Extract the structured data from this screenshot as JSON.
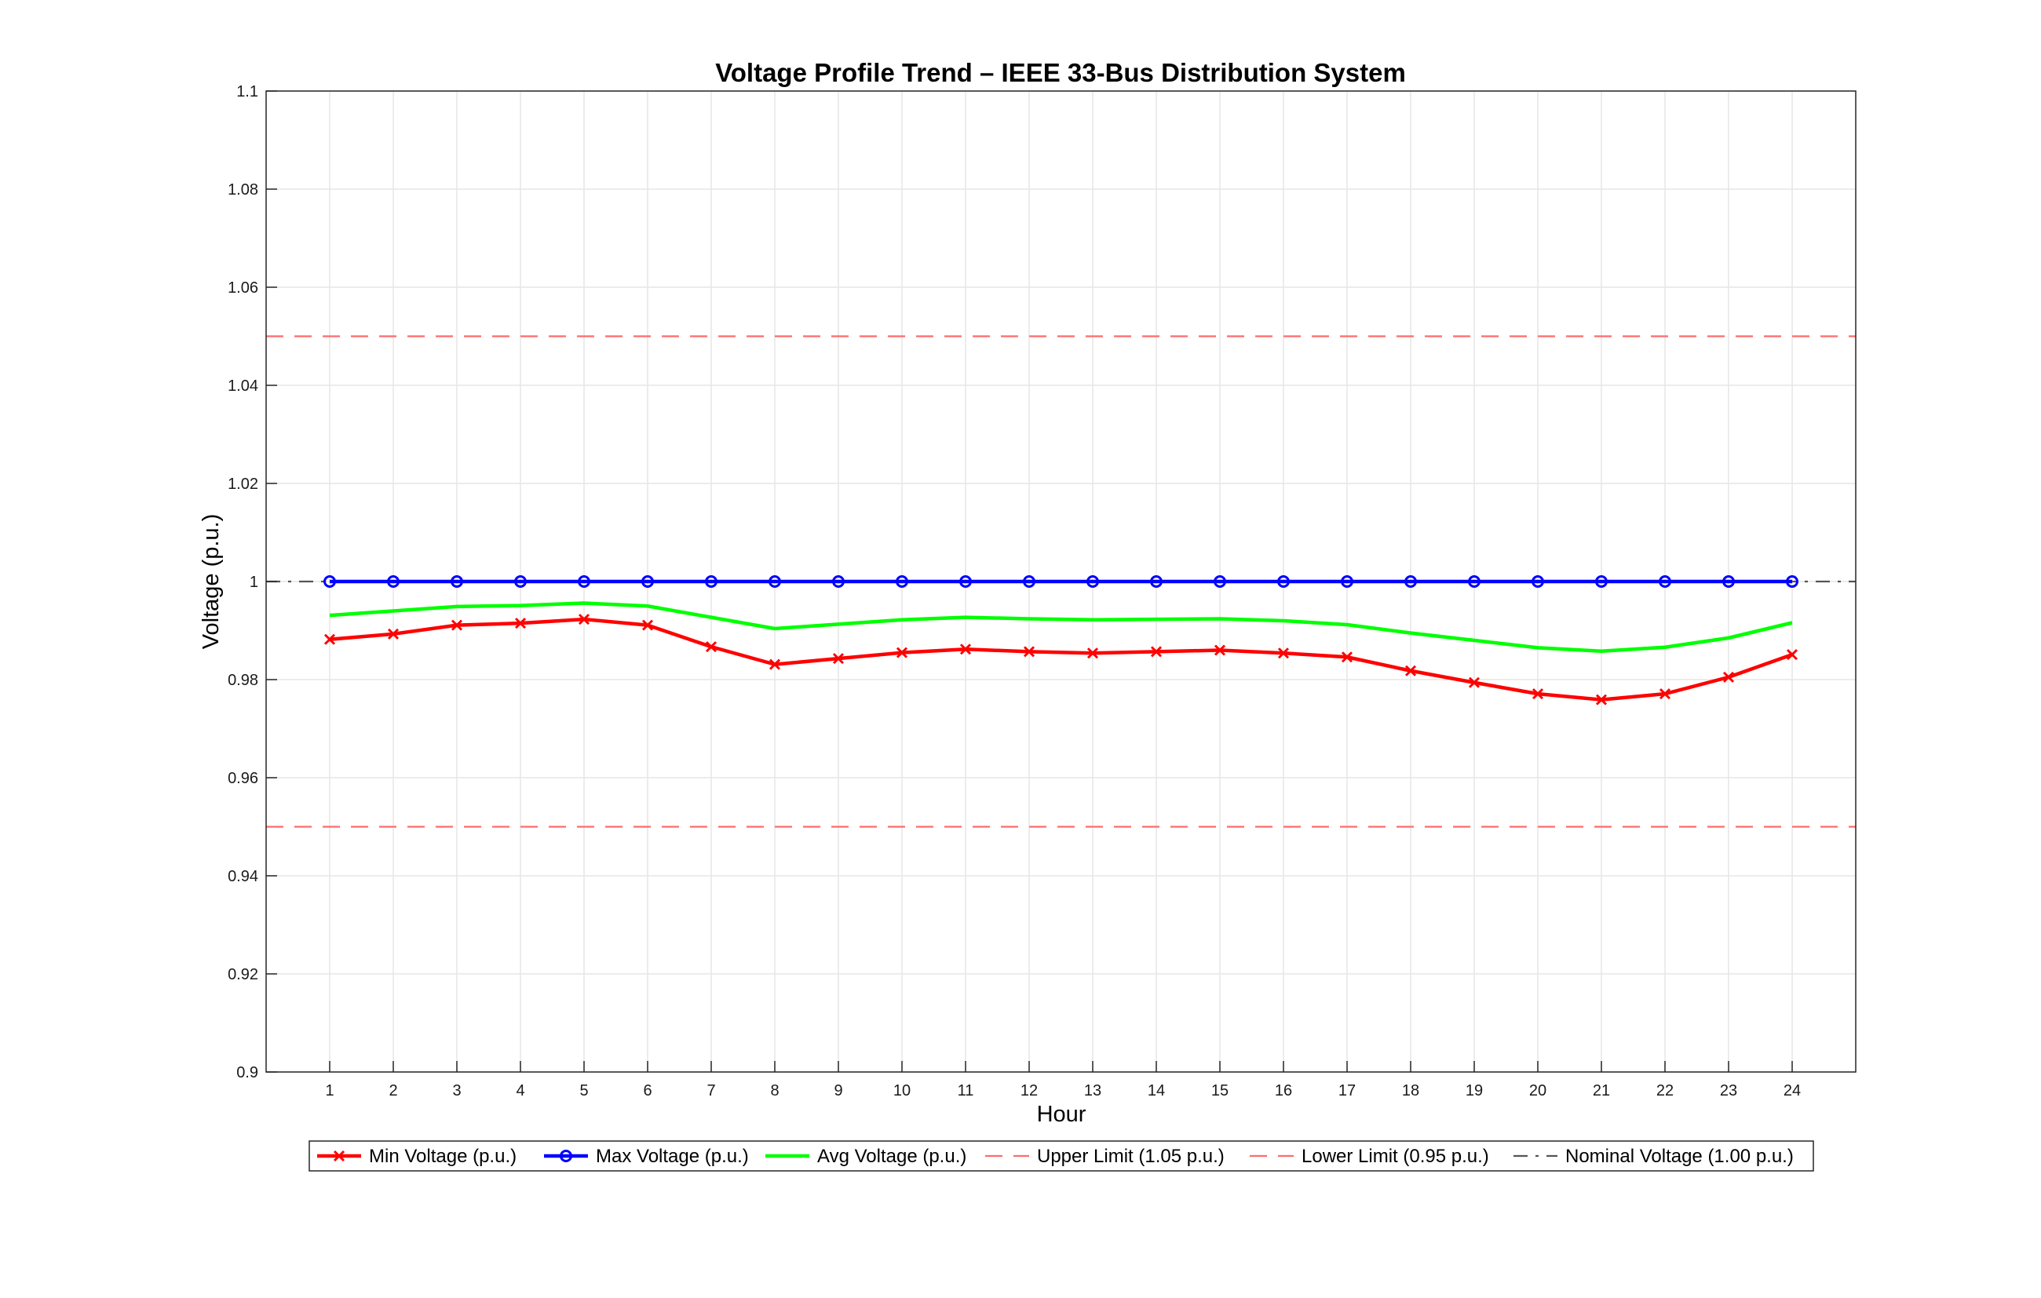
{
  "chart_data": {
    "type": "line",
    "title": "Voltage Profile Trend – IEEE 33-Bus Distribution System",
    "xlabel": "Hour",
    "ylabel": "Voltage (p.u.)",
    "xlim": [
      0,
      25
    ],
    "ylim": [
      0.9,
      1.1
    ],
    "grid": true,
    "legend_position": "bottom-center",
    "x": [
      1,
      2,
      3,
      4,
      5,
      6,
      7,
      8,
      9,
      10,
      11,
      12,
      13,
      14,
      15,
      16,
      17,
      18,
      19,
      20,
      21,
      22,
      23,
      24
    ],
    "x_ticks": [
      "1",
      "2",
      "3",
      "4",
      "5",
      "6",
      "7",
      "8",
      "9",
      "10",
      "11",
      "12",
      "13",
      "14",
      "15",
      "16",
      "17",
      "18",
      "19",
      "20",
      "21",
      "22",
      "23",
      "24"
    ],
    "y_ticks": [
      {
        "value": 0.9,
        "label": "0.9"
      },
      {
        "value": 0.92,
        "label": "0.92"
      },
      {
        "value": 0.94,
        "label": "0.94"
      },
      {
        "value": 0.96,
        "label": "0.96"
      },
      {
        "value": 0.98,
        "label": "0.98"
      },
      {
        "value": 1.0,
        "label": "1"
      },
      {
        "value": 1.02,
        "label": "1.02"
      },
      {
        "value": 1.04,
        "label": "1.04"
      },
      {
        "value": 1.06,
        "label": "1.06"
      },
      {
        "value": 1.08,
        "label": "1.08"
      },
      {
        "value": 1.1,
        "label": "1.1"
      }
    ],
    "series": [
      {
        "name": "Min Voltage (p.u.)",
        "color": "#ff0000",
        "line": "solid",
        "marker": "x",
        "values": [
          0.9882,
          0.9893,
          0.9911,
          0.9915,
          0.9923,
          0.9911,
          0.9867,
          0.9831,
          0.9843,
          0.9855,
          0.9862,
          0.9857,
          0.9854,
          0.9857,
          0.986,
          0.9854,
          0.9846,
          0.9818,
          0.9794,
          0.9771,
          0.9759,
          0.9771,
          0.9805,
          0.9851
        ]
      },
      {
        "name": "Max Voltage (p.u.)",
        "color": "#0000ff",
        "line": "solid",
        "marker": "o",
        "values": [
          1,
          1,
          1,
          1,
          1,
          1,
          1,
          1,
          1,
          1,
          1,
          1,
          1,
          1,
          1,
          1,
          1,
          1,
          1,
          1,
          1,
          1,
          1,
          1
        ]
      },
      {
        "name": "Avg Voltage (p.u.)",
        "color": "#00ff00",
        "line": "solid",
        "marker": "none",
        "values": [
          0.9931,
          0.994,
          0.9949,
          0.9951,
          0.9956,
          0.995,
          0.9927,
          0.9904,
          0.9913,
          0.9922,
          0.9927,
          0.9924,
          0.9922,
          0.9923,
          0.9924,
          0.992,
          0.9912,
          0.9895,
          0.988,
          0.9865,
          0.9858,
          0.9866,
          0.9885,
          0.9916
        ]
      }
    ],
    "reference_lines": [
      {
        "name": "Upper Limit (1.05 p.u.)",
        "value": 1.05,
        "color": "#ff6b6b",
        "line": "dashed"
      },
      {
        "name": "Lower Limit (0.95 p.u.)",
        "value": 0.95,
        "color": "#ff6b6b",
        "line": "dashed"
      },
      {
        "name": "Nominal Voltage (1.00 p.u.)",
        "value": 1.0,
        "color": "#555555",
        "line": "dashdot"
      }
    ]
  }
}
